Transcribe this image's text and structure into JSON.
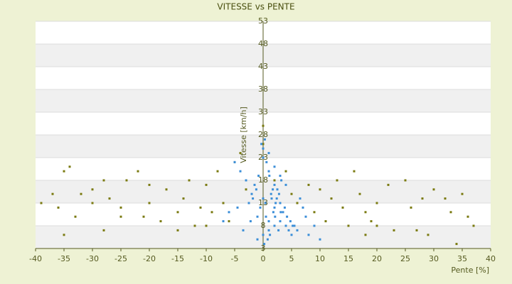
{
  "chart_data": {
    "type": "scatter",
    "title": "VITESSE vs PENTE",
    "x_label": "Pente [%]",
    "y_label": "Vitesse [km/h]",
    "xlim": [
      -40,
      40
    ],
    "xticks": [
      -40,
      -35,
      -30,
      -25,
      -20,
      -15,
      -10,
      -5,
      0,
      5,
      10,
      15,
      20,
      25,
      30,
      35,
      40
    ],
    "ylim": [
      3,
      53
    ],
    "yticks": [
      3,
      8,
      13,
      18,
      23,
      28,
      33,
      38,
      43,
      48,
      53
    ],
    "grid": true,
    "series": [
      {
        "color": "#7a7a10",
        "x": [
          -35,
          -34,
          -37,
          -39,
          -36,
          -33,
          -32,
          -30,
          -28,
          -27,
          -25,
          -24,
          -22,
          -21,
          -20,
          -18,
          -17,
          -15,
          -14,
          -13,
          -12,
          -11,
          -10,
          -9,
          -8,
          -7,
          -6,
          -5,
          -4,
          -3,
          0,
          0,
          2,
          4,
          5,
          6,
          8,
          9,
          10,
          11,
          12,
          13,
          14,
          15,
          16,
          17,
          18,
          19,
          20,
          22,
          23,
          25,
          26,
          28,
          29,
          30,
          32,
          33,
          35,
          36,
          37,
          34,
          -35,
          -25,
          -28,
          -15,
          -10,
          20,
          18,
          27,
          -20,
          -30
        ],
        "y": [
          20,
          21,
          15,
          13,
          12,
          10,
          15,
          16,
          18,
          14,
          12,
          18,
          20,
          10,
          13,
          9,
          16,
          11,
          14,
          18,
          8,
          12,
          17,
          11,
          20,
          13,
          9,
          22,
          24,
          16,
          26,
          30,
          18,
          20,
          15,
          13,
          17,
          11,
          16,
          9,
          14,
          18,
          12,
          8,
          20,
          15,
          11,
          9,
          13,
          17,
          7,
          18,
          12,
          14,
          6,
          16,
          14,
          11,
          15,
          10,
          8,
          4,
          6,
          10,
          7,
          7,
          8,
          8,
          6,
          7,
          17,
          13
        ]
      },
      {
        "color": "#3b8ed8",
        "x": [
          -1,
          0,
          1,
          2,
          0.5,
          -0.5,
          1.5,
          2.5,
          3,
          3.5,
          4,
          4.5,
          5,
          5.5,
          6,
          -2,
          -3,
          -4,
          -5,
          -2.5,
          -1.5,
          0,
          1,
          2,
          3,
          4,
          0,
          -1,
          1,
          2,
          0.2,
          0.8,
          1.2,
          1.8,
          2.2,
          2.8,
          3.2,
          3.8,
          4.2,
          4.8,
          5.2,
          -0.8,
          -1.2,
          -1.8,
          0,
          1,
          2,
          3,
          -3.5,
          -6,
          -7,
          7,
          8,
          9,
          10,
          0.3,
          0.6,
          1.1,
          1.7,
          2.4,
          3.1,
          -0.3,
          0.4,
          1.4,
          2.1,
          2.7,
          -2.2,
          -4.5,
          6.5,
          7.5
        ],
        "y": [
          5,
          6,
          7,
          8,
          10,
          12,
          14,
          16,
          9,
          11,
          8,
          7,
          6,
          8,
          7,
          15,
          18,
          20,
          22,
          13,
          17,
          25,
          24,
          21,
          19,
          17,
          14,
          10,
          9,
          12,
          4,
          5,
          6,
          11,
          13,
          15,
          18,
          12,
          10,
          9,
          8,
          19,
          16,
          14,
          23,
          20,
          17,
          13,
          7,
          11,
          9,
          12,
          6,
          8,
          5,
          27,
          22,
          19,
          16,
          14,
          11,
          26,
          13,
          15,
          10,
          7,
          9,
          12,
          14,
          10
        ]
      }
    ]
  }
}
